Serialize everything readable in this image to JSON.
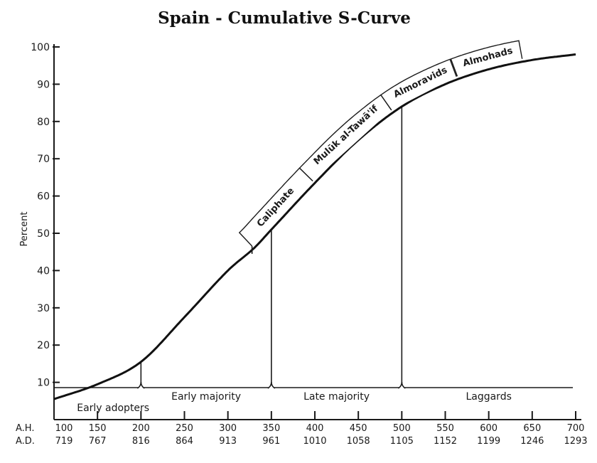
{
  "chart_data": {
    "type": "line",
    "title": "Spain - Cumulative S-Curve",
    "xlabel": "",
    "ylabel": "Percent",
    "x_ah": [
      100,
      150,
      200,
      250,
      300,
      350,
      400,
      450,
      500,
      550,
      600,
      650,
      700
    ],
    "x_ad": [
      719,
      767,
      816,
      864,
      913,
      961,
      1010,
      1058,
      1105,
      1152,
      1199,
      1246,
      1293
    ],
    "x_row_labels": {
      "ah": "A.H.",
      "ad": "A.D."
    },
    "xlim": [
      100,
      700
    ],
    "ylim": [
      0,
      100
    ],
    "yticks": [
      10,
      20,
      30,
      40,
      50,
      60,
      70,
      80,
      90,
      100
    ],
    "grid": false,
    "legend": "none",
    "series": [
      {
        "x": [
          100,
          150,
          200,
          250,
          300,
          330,
          350,
          400,
          450,
          500,
          550,
          600,
          650,
          700
        ],
        "y": [
          5.5,
          9.5,
          15.5,
          27.5,
          40,
          46,
          51,
          63.5,
          75,
          84,
          90,
          94,
          96.5,
          98
        ]
      }
    ],
    "phases": [
      {
        "label": "Early adopters",
        "from": 100,
        "to": 200
      },
      {
        "label": "Early majority",
        "from": 200,
        "to": 350
      },
      {
        "label": "Late majority",
        "from": 350,
        "to": 500
      },
      {
        "label": "Laggards",
        "from": 500,
        "to": 700
      }
    ],
    "dynasties": [
      {
        "label": "Caliphate",
        "from": 330,
        "to": 400
      },
      {
        "label": "Mulūk al-Tawā'if",
        "from": 400,
        "to": 490
      },
      {
        "label": "Almoravids",
        "from": 490,
        "to": 565
      },
      {
        "label": "Almohads",
        "from": 565,
        "to": 640
      }
    ],
    "colors": {
      "ink": "#1a1a1a",
      "background": "#ffffff"
    }
  }
}
